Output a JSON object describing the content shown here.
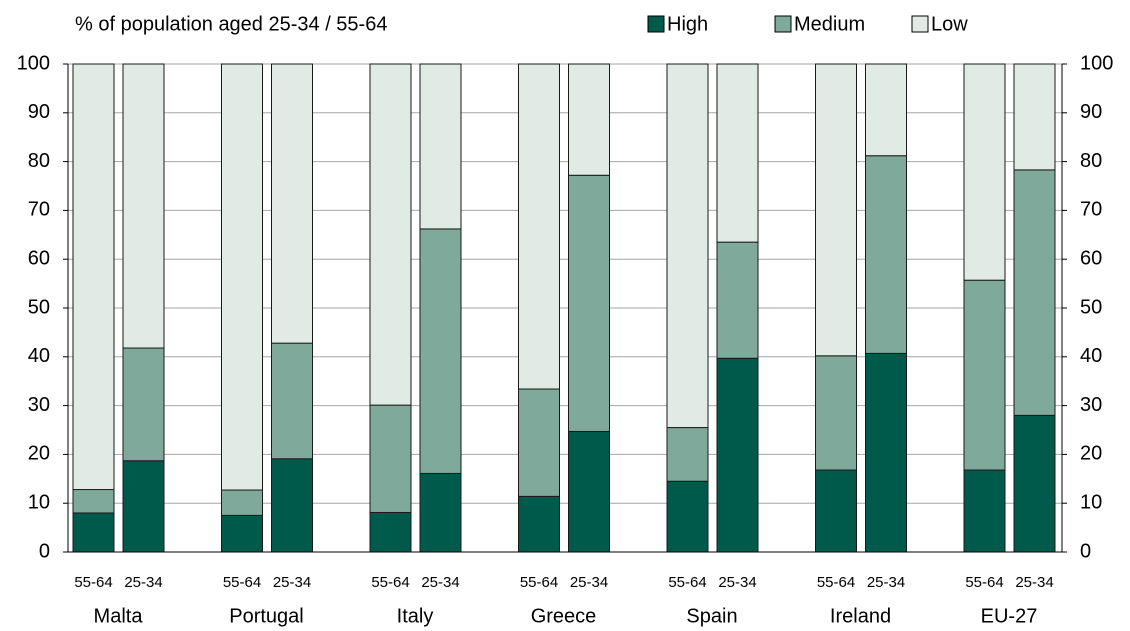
{
  "chart_data": {
    "type": "stacked_bar",
    "title": "% of population aged 25-34 / 55-64",
    "categories": [
      "55-64",
      "25-34",
      "55-64",
      "25-34",
      "55-64",
      "25-34",
      "55-64",
      "25-34",
      "55-64",
      "25-34",
      "55-64",
      "25-34",
      "55-64",
      "25-34"
    ],
    "groups": [
      "Malta",
      "Portugal",
      "Italy",
      "Greece",
      "Spain",
      "Ireland",
      "EU-27"
    ],
    "series": [
      {
        "name": "High",
        "color": "#005a4b",
        "values": [
          8.0,
          18.7,
          7.5,
          19.1,
          8.1,
          16.1,
          11.4,
          24.7,
          14.5,
          39.7,
          16.8,
          40.7,
          16.8,
          28.0
        ]
      },
      {
        "name": "Medium",
        "color": "#7fa99b",
        "values": [
          4.8,
          23.1,
          5.2,
          23.7,
          22.0,
          50.1,
          22.0,
          52.5,
          11.0,
          23.8,
          23.4,
          40.5,
          38.9,
          50.3
        ]
      },
      {
        "name": "Low",
        "color": "#e0ebe6",
        "values": [
          87.2,
          58.2,
          87.3,
          57.2,
          69.9,
          33.8,
          66.6,
          22.8,
          74.5,
          36.5,
          59.8,
          18.8,
          44.3,
          21.7
        ]
      }
    ],
    "ylim": [
      0,
      100
    ],
    "yticks": [
      0,
      10,
      20,
      30,
      40,
      50,
      60,
      70,
      80,
      90,
      100
    ],
    "y2lim": [
      0,
      100
    ],
    "y2ticks": [
      0,
      10,
      20,
      30,
      40,
      50,
      60,
      70,
      80,
      90,
      100
    ],
    "grid": true
  }
}
